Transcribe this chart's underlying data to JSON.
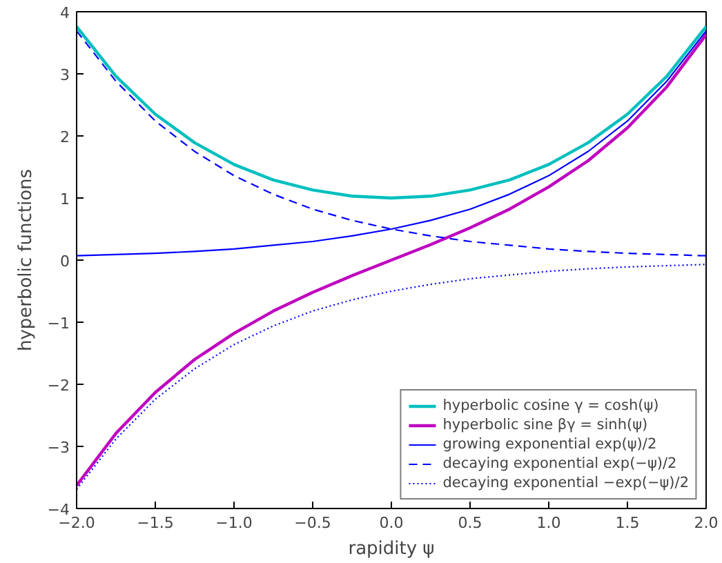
{
  "chart_data": {
    "type": "line",
    "xlabel": "rapidity ψ",
    "ylabel": "hyperbolic functions",
    "x": [
      -2,
      -1.75,
      -1.5,
      -1.25,
      -1,
      -0.75,
      -0.5,
      -0.25,
      0,
      0.25,
      0.5,
      0.75,
      1,
      1.25,
      1.5,
      1.75,
      2
    ],
    "series": [
      {
        "name": "hyperbolic cosine γ = cosh(ψ)",
        "color": "#00bfbf",
        "line_style": "solid",
        "values": [
          3.76,
          2.96,
          2.35,
          1.89,
          1.54,
          1.29,
          1.13,
          1.03,
          1.0,
          1.03,
          1.13,
          1.29,
          1.54,
          1.89,
          2.35,
          2.96,
          3.76
        ]
      },
      {
        "name": "hyperbolic sine βγ = sinh(ψ)",
        "color": "#bf00bf",
        "line_style": "solid",
        "values": [
          -3.63,
          -2.79,
          -2.13,
          -1.6,
          -1.18,
          -0.82,
          -0.52,
          -0.25,
          0.0,
          0.25,
          0.52,
          0.82,
          1.18,
          1.6,
          2.13,
          2.79,
          3.63
        ]
      },
      {
        "name": "growing exponential exp(ψ)/2",
        "color": "#0000ff",
        "line_style": "solid",
        "values": [
          0.07,
          0.09,
          0.11,
          0.14,
          0.18,
          0.24,
          0.3,
          0.39,
          0.5,
          0.64,
          0.82,
          1.06,
          1.36,
          1.75,
          2.24,
          2.88,
          3.69
        ]
      },
      {
        "name": "decaying exponential exp(−ψ)/2",
        "color": "#0000ff",
        "line_style": "dashed",
        "values": [
          3.69,
          2.88,
          2.24,
          1.75,
          1.36,
          1.06,
          0.82,
          0.64,
          0.5,
          0.39,
          0.3,
          0.24,
          0.18,
          0.14,
          0.11,
          0.09,
          0.07
        ]
      },
      {
        "name": "decaying exponential −exp(−ψ)/2",
        "color": "#0000ff",
        "line_style": "dotted",
        "values": [
          -3.69,
          -2.88,
          -2.24,
          -1.75,
          -1.36,
          -1.06,
          -0.82,
          -0.64,
          -0.5,
          -0.39,
          -0.3,
          -0.24,
          -0.18,
          -0.14,
          -0.11,
          -0.09,
          -0.07
        ]
      }
    ],
    "xlim": [
      -2,
      2
    ],
    "ylim": [
      -4,
      4
    ],
    "xticks": [
      {
        "value": -2,
        "label": "−2.0"
      },
      {
        "value": -1.5,
        "label": "−1.5"
      },
      {
        "value": -1,
        "label": "−1.0"
      },
      {
        "value": -0.5,
        "label": "−0.5"
      },
      {
        "value": 0,
        "label": "0.0"
      },
      {
        "value": 0.5,
        "label": "0.5"
      },
      {
        "value": 1,
        "label": "1.0"
      },
      {
        "value": 1.5,
        "label": "1.5"
      },
      {
        "value": 2,
        "label": "2.0"
      }
    ],
    "yticks": [
      {
        "value": -4,
        "label": "−4"
      },
      {
        "value": -3,
        "label": "−3"
      },
      {
        "value": -2,
        "label": "−2"
      },
      {
        "value": -1,
        "label": "−1"
      },
      0,
      1,
      2,
      3,
      4
    ],
    "legend": "bottom right",
    "grid": false
  }
}
